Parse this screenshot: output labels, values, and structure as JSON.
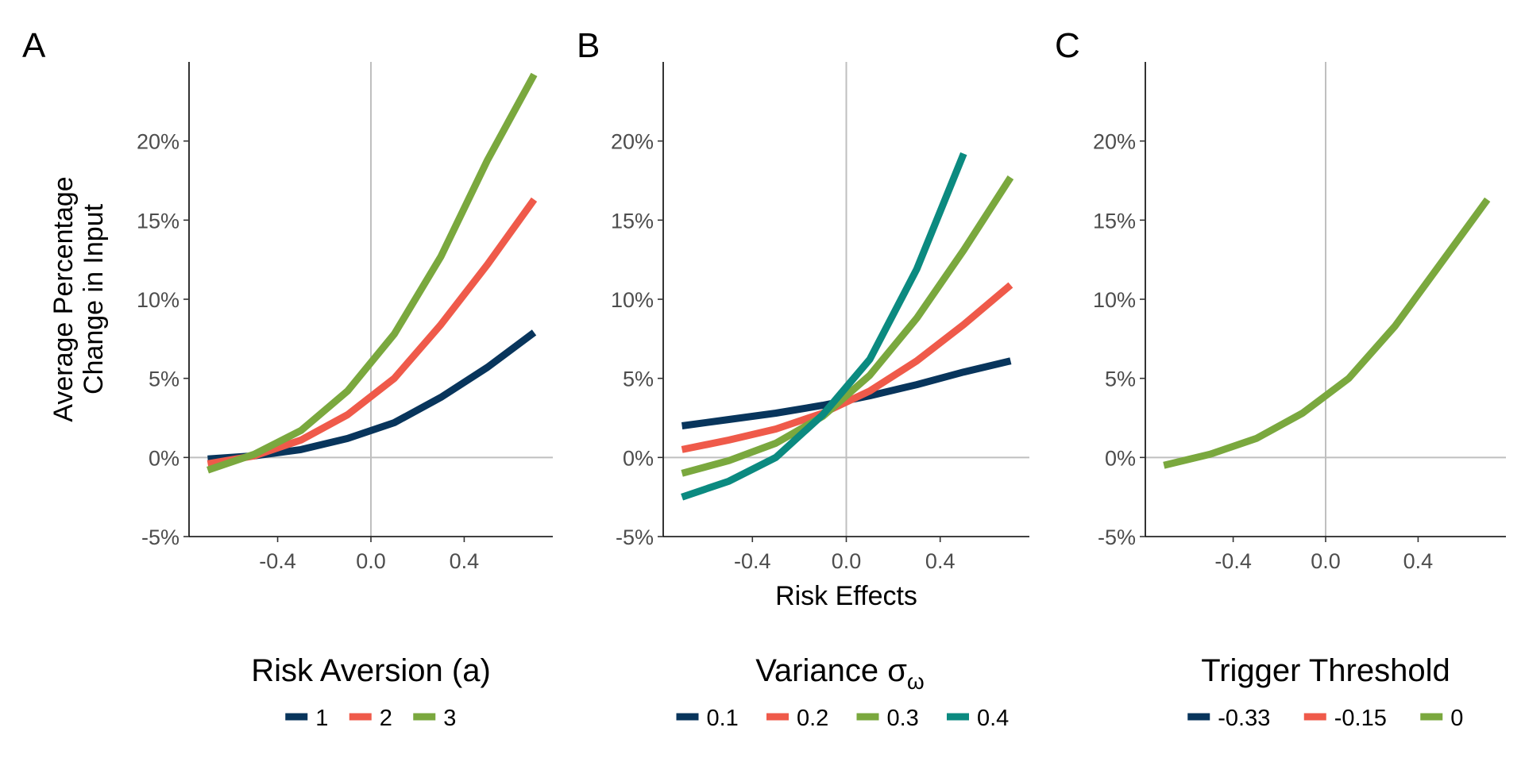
{
  "chart_data": [
    {
      "type": "line",
      "panel": "A",
      "xlabel": "",
      "ylabel": "Average Percentage\nChange in Input",
      "xlim": [
        -0.78,
        0.78
      ],
      "ylim": [
        -5,
        25
      ],
      "xticks": [
        -0.4,
        0.0,
        0.4
      ],
      "xtick_labels": [
        "-0.4",
        "0.0",
        "0.4"
      ],
      "yticks": [
        -5,
        0,
        5,
        10,
        15,
        20
      ],
      "ytick_labels": [
        "-5%",
        "0%",
        "5%",
        "10%",
        "15%",
        "20%"
      ],
      "reference_lines": {
        "x": 0,
        "y": 0
      },
      "grid": false,
      "legend": {
        "title": "Risk Aversion (a)",
        "position": "bottom",
        "entries": [
          "1",
          "2",
          "3"
        ]
      },
      "x": [
        -0.7,
        -0.5,
        -0.3,
        -0.1,
        0.1,
        0.3,
        0.5,
        0.7
      ],
      "series": [
        {
          "name": "1",
          "color": "#08355c",
          "values": [
            -0.1,
            0.1,
            0.5,
            1.2,
            2.2,
            3.8,
            5.7,
            7.9
          ]
        },
        {
          "name": "2",
          "color": "#ef5a4a",
          "values": [
            -0.4,
            0.1,
            1.1,
            2.7,
            5.0,
            8.4,
            12.2,
            16.3
          ]
        },
        {
          "name": "3",
          "color": "#7aa83e",
          "values": [
            -0.8,
            0.2,
            1.7,
            4.2,
            7.8,
            12.7,
            18.8,
            24.2
          ]
        }
      ]
    },
    {
      "type": "line",
      "panel": "B",
      "xlabel": "Risk Effects",
      "ylabel": "",
      "xlim": [
        -0.78,
        0.78
      ],
      "ylim": [
        -5,
        25
      ],
      "xticks": [
        -0.4,
        0.0,
        0.4
      ],
      "xtick_labels": [
        "-0.4",
        "0.0",
        "0.4"
      ],
      "yticks": [
        -5,
        0,
        5,
        10,
        15,
        20
      ],
      "ytick_labels": [
        "-5%",
        "0%",
        "5%",
        "10%",
        "15%",
        "20%"
      ],
      "reference_lines": {
        "x": 0,
        "y": 0
      },
      "grid": false,
      "legend": {
        "title": "Variance σ",
        "title_subscript": "ω",
        "position": "bottom",
        "entries": [
          "0.1",
          "0.2",
          "0.3",
          "0.4"
        ]
      },
      "series": [
        {
          "name": "0.1",
          "color": "#08355c",
          "x": [
            -0.7,
            -0.5,
            -0.3,
            -0.1,
            0.1,
            0.3,
            0.5,
            0.7
          ],
          "values": [
            2.0,
            2.4,
            2.8,
            3.3,
            3.9,
            4.6,
            5.4,
            6.1
          ]
        },
        {
          "name": "0.2",
          "color": "#ef5a4a",
          "x": [
            -0.7,
            -0.5,
            -0.3,
            -0.1,
            0.1,
            0.3,
            0.5,
            0.7
          ],
          "values": [
            0.5,
            1.1,
            1.8,
            2.8,
            4.2,
            6.1,
            8.4,
            10.9
          ]
        },
        {
          "name": "0.3",
          "color": "#7aa83e",
          "x": [
            -0.7,
            -0.5,
            -0.3,
            -0.1,
            0.1,
            0.3,
            0.5,
            0.7
          ],
          "values": [
            -1.0,
            -0.2,
            0.9,
            2.6,
            5.2,
            8.8,
            13.1,
            17.7
          ]
        },
        {
          "name": "0.4",
          "color": "#0b8a80",
          "x": [
            -0.7,
            -0.5,
            -0.3,
            -0.1,
            0.1,
            0.3,
            0.5
          ],
          "values": [
            -2.5,
            -1.5,
            0.0,
            2.7,
            6.2,
            11.9,
            19.2
          ]
        }
      ]
    },
    {
      "type": "line",
      "panel": "C",
      "xlabel": "",
      "ylabel": "",
      "xlim": [
        -0.78,
        0.78
      ],
      "ylim": [
        -5,
        25
      ],
      "xticks": [
        -0.4,
        0.0,
        0.4
      ],
      "xtick_labels": [
        "-0.4",
        "0.0",
        "0.4"
      ],
      "yticks": [
        -5,
        0,
        5,
        10,
        15,
        20
      ],
      "ytick_labels": [
        "-5%",
        "0%",
        "5%",
        "10%",
        "15%",
        "20%"
      ],
      "reference_lines": {
        "x": 0,
        "y": 0
      },
      "grid": false,
      "legend": {
        "title": "Trigger Threshold",
        "position": "bottom",
        "entries": [
          "-0.33",
          "-0.15",
          "0"
        ]
      },
      "x": [
        -0.7,
        -0.5,
        -0.3,
        -0.1,
        0.1,
        0.3,
        0.5,
        0.7
      ],
      "series": [
        {
          "name": "0",
          "color": "#7aa83e",
          "values": [
            -0.5,
            0.2,
            1.2,
            2.8,
            5.0,
            8.3,
            12.3,
            16.3
          ]
        }
      ],
      "legend_colors": [
        "#08355c",
        "#ef5a4a",
        "#7aa83e"
      ]
    }
  ]
}
